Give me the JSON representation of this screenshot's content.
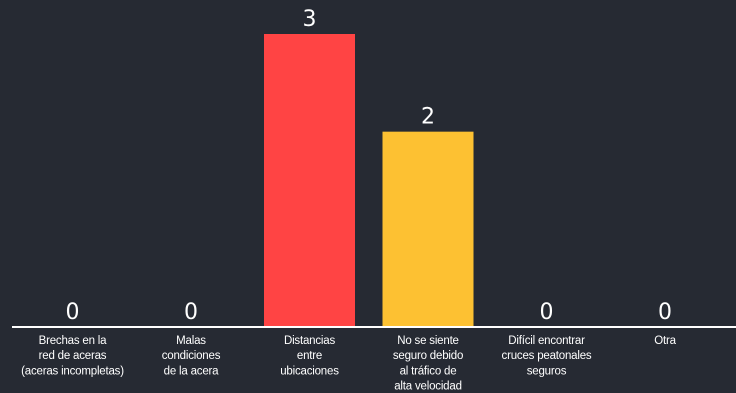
{
  "chart_data": {
    "type": "bar",
    "categories": [
      [
        "Brechas en la",
        "red de aceras",
        "(aceras incompletas)"
      ],
      [
        "Malas",
        "condiciones",
        "de la acera"
      ],
      [
        "Distancias",
        "entre",
        "ubicaciones"
      ],
      [
        "No se siente",
        "seguro debido",
        "al tráfico de",
        "alta velocidad"
      ],
      [
        "Difícil encontrar",
        "cruces peatonales",
        "seguros"
      ],
      [
        "Otra"
      ]
    ],
    "values": [
      0,
      0,
      3,
      2,
      0,
      0
    ],
    "value_labels": [
      "0",
      "0",
      "3",
      "2",
      "0",
      "0"
    ],
    "colors": [
      "#9aa0a8",
      "#9aa0a8",
      "#ff4444",
      "#fdc132",
      "#9aa0a8",
      "#9aa0a8"
    ],
    "ylim": [
      0,
      3
    ],
    "grid": false,
    "legend": "none",
    "axis_color": "#ffffff",
    "background": "#262a33"
  }
}
